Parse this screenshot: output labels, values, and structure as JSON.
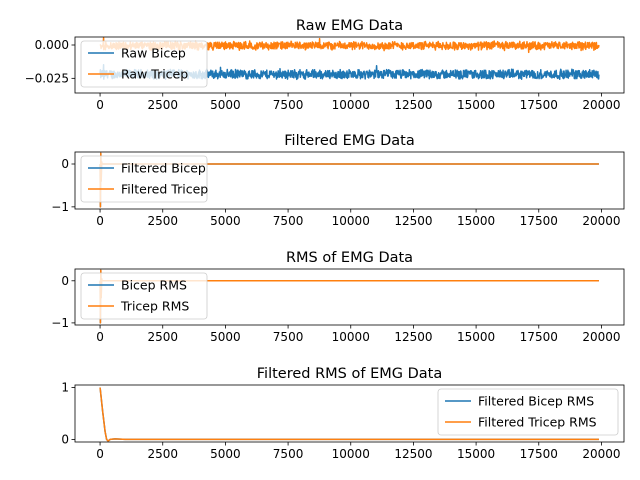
{
  "figure": {
    "background": "#ffffff"
  },
  "colors": {
    "series1": "#1f77b4",
    "series2": "#ff7f0e"
  },
  "chart_data": [
    {
      "type": "line",
      "title": "Raw EMG Data",
      "xlabel": "",
      "ylabel": "",
      "xlim": [
        -1000,
        20900
      ],
      "ylim": [
        -0.036,
        0.006
      ],
      "xticks": [
        0,
        2500,
        5000,
        7500,
        10000,
        12500,
        15000,
        17500,
        20000
      ],
      "yticks": [
        0.0,
        -0.025
      ],
      "ytick_labels": [
        "0.000",
        "−0.025"
      ],
      "legend": "upper-left",
      "series": [
        {
          "name": "Raw Bicep",
          "color": "#1f77b4",
          "kind": "noise",
          "x_range": [
            0,
            19900
          ],
          "mean": -0.022,
          "amp": 0.004,
          "spike": 0.006
        },
        {
          "name": "Raw Tricep",
          "color": "#ff7f0e",
          "kind": "noise",
          "x_range": [
            0,
            19900
          ],
          "mean": -0.0005,
          "amp": 0.0035,
          "spike": 0.005
        }
      ]
    },
    {
      "type": "line",
      "title": "Filtered EMG Data",
      "xlabel": "",
      "ylabel": "",
      "xlim": [
        -1000,
        20900
      ],
      "ylim": [
        -1.05,
        0.28
      ],
      "xticks": [
        0,
        2500,
        5000,
        7500,
        10000,
        12500,
        15000,
        17500,
        20000
      ],
      "yticks": [
        0,
        -1
      ],
      "ytick_labels": [
        "0",
        "−1"
      ],
      "legend": "upper-left",
      "series": [
        {
          "name": "Filtered Bicep",
          "color": "#1f77b4",
          "kind": "transient",
          "x_range": [
            0,
            19900
          ],
          "settle": 0,
          "spike_low": -1.0,
          "spike_high": 0.25
        },
        {
          "name": "Filtered Tricep",
          "color": "#ff7f0e",
          "kind": "transient",
          "x_range": [
            0,
            19900
          ],
          "settle": 0,
          "spike_low": -1.0,
          "spike_high": 0.25
        }
      ]
    },
    {
      "type": "line",
      "title": "RMS of EMG Data",
      "xlabel": "",
      "ylabel": "",
      "xlim": [
        -1000,
        20900
      ],
      "ylim": [
        -1.05,
        0.28
      ],
      "xticks": [
        0,
        2500,
        5000,
        7500,
        10000,
        12500,
        15000,
        17500,
        20000
      ],
      "yticks": [
        0,
        -1
      ],
      "ytick_labels": [
        "0",
        "−1"
      ],
      "legend": "upper-left",
      "series": [
        {
          "name": "Bicep RMS",
          "color": "#1f77b4",
          "kind": "transient",
          "x_range": [
            0,
            19900
          ],
          "settle": 0,
          "spike_low": -1.0,
          "spike_high": 0.25
        },
        {
          "name": "Tricep RMS",
          "color": "#ff7f0e",
          "kind": "transient",
          "x_range": [
            0,
            19900
          ],
          "settle": 0,
          "spike_low": -1.0,
          "spike_high": 0.25
        }
      ]
    },
    {
      "type": "line",
      "title": "Filtered RMS of EMG Data",
      "xlabel": "",
      "ylabel": "",
      "xlim": [
        -1000,
        20900
      ],
      "ylim": [
        -0.05,
        1.05
      ],
      "xticks": [
        0,
        2500,
        5000,
        7500,
        10000,
        12500,
        15000,
        17500,
        20000
      ],
      "yticks": [
        1,
        0
      ],
      "ytick_labels": [
        "1",
        "0"
      ],
      "legend": "upper-right",
      "series": [
        {
          "name": "Filtered Bicep RMS",
          "color": "#1f77b4",
          "kind": "decay",
          "x": [
            0,
            100,
            200,
            260,
            320,
            400,
            600,
            1000,
            19900
          ],
          "y": [
            1.0,
            0.55,
            0.15,
            0.0,
            -0.03,
            0.0,
            0.01,
            0.0,
            0.0
          ]
        },
        {
          "name": "Filtered Tricep RMS",
          "color": "#ff7f0e",
          "kind": "decay",
          "x": [
            0,
            100,
            200,
            260,
            320,
            400,
            600,
            1000,
            19900
          ],
          "y": [
            1.0,
            0.55,
            0.15,
            0.0,
            -0.03,
            0.0,
            0.01,
            0.0,
            0.0
          ]
        }
      ]
    }
  ]
}
